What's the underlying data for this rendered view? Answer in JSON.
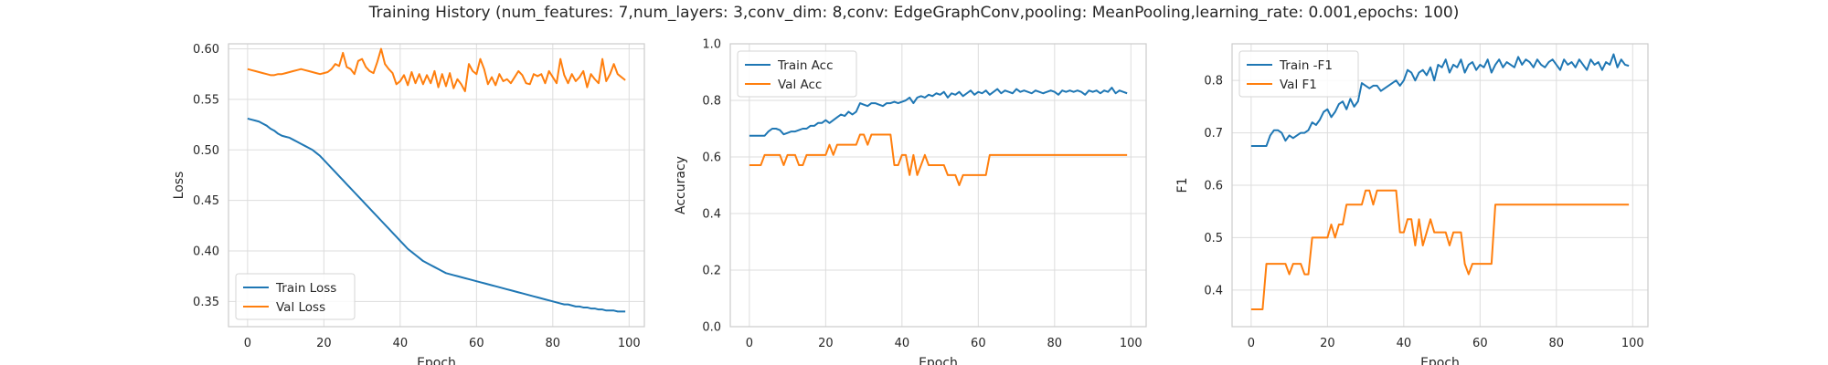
{
  "title": "Training History (num_features: 7,num_layers: 3,conv_dim: 8,conv: EdgeGraphConv,pooling: MeanPooling,learning_rate: 0.001,epochs: 100)",
  "colors": {
    "train": "#1f77b4",
    "val": "#ff7f0e",
    "grid": "#dddddd",
    "axes": "#cccccc"
  },
  "chart_data": [
    {
      "type": "line",
      "title": "",
      "xlabel": "Epoch",
      "ylabel": "Loss",
      "xlim": [
        -5,
        104
      ],
      "ylim": [
        0.325,
        0.605
      ],
      "xticks": [
        0,
        20,
        40,
        60,
        80,
        100
      ],
      "yticks": [
        0.35,
        0.4,
        0.45,
        0.5,
        0.55,
        0.6
      ],
      "ytick_decimals": 2,
      "legend": "lower-left",
      "grid": true,
      "series": [
        {
          "name": "Train Loss",
          "color": "#1f77b4",
          "y": [
            0.531,
            0.53,
            0.529,
            0.528,
            0.526,
            0.524,
            0.521,
            0.519,
            0.516,
            0.514,
            0.513,
            0.512,
            0.51,
            0.508,
            0.506,
            0.504,
            0.502,
            0.5,
            0.497,
            0.494,
            0.49,
            0.486,
            0.482,
            0.478,
            0.474,
            0.47,
            0.466,
            0.462,
            0.458,
            0.454,
            0.45,
            0.446,
            0.442,
            0.438,
            0.434,
            0.43,
            0.426,
            0.422,
            0.418,
            0.414,
            0.41,
            0.406,
            0.402,
            0.399,
            0.396,
            0.393,
            0.39,
            0.388,
            0.386,
            0.384,
            0.382,
            0.38,
            0.378,
            0.377,
            0.376,
            0.375,
            0.374,
            0.373,
            0.372,
            0.371,
            0.37,
            0.369,
            0.368,
            0.367,
            0.366,
            0.365,
            0.364,
            0.363,
            0.362,
            0.361,
            0.36,
            0.359,
            0.358,
            0.357,
            0.356,
            0.355,
            0.354,
            0.353,
            0.352,
            0.351,
            0.35,
            0.349,
            0.348,
            0.347,
            0.347,
            0.346,
            0.345,
            0.345,
            0.344,
            0.344,
            0.343,
            0.343,
            0.342,
            0.342,
            0.341,
            0.341,
            0.341,
            0.34,
            0.34,
            0.34
          ]
        },
        {
          "name": "Val Loss",
          "color": "#ff7f0e",
          "y": [
            0.58,
            0.579,
            0.578,
            0.577,
            0.576,
            0.575,
            0.574,
            0.574,
            0.575,
            0.575,
            0.576,
            0.577,
            0.578,
            0.579,
            0.58,
            0.579,
            0.578,
            0.577,
            0.576,
            0.575,
            0.576,
            0.577,
            0.58,
            0.585,
            0.583,
            0.596,
            0.582,
            0.58,
            0.575,
            0.588,
            0.59,
            0.582,
            0.578,
            0.576,
            0.587,
            0.6,
            0.585,
            0.58,
            0.576,
            0.565,
            0.568,
            0.574,
            0.564,
            0.577,
            0.566,
            0.575,
            0.565,
            0.574,
            0.566,
            0.578,
            0.562,
            0.575,
            0.563,
            0.576,
            0.561,
            0.57,
            0.565,
            0.558,
            0.585,
            0.578,
            0.575,
            0.59,
            0.58,
            0.565,
            0.572,
            0.564,
            0.575,
            0.568,
            0.57,
            0.566,
            0.572,
            0.578,
            0.574,
            0.566,
            0.565,
            0.575,
            0.573,
            0.575,
            0.566,
            0.578,
            0.572,
            0.566,
            0.59,
            0.574,
            0.566,
            0.575,
            0.568,
            0.572,
            0.578,
            0.562,
            0.575,
            0.57,
            0.566,
            0.59,
            0.568,
            0.575,
            0.585,
            0.575,
            0.572,
            0.569
          ]
        }
      ]
    },
    {
      "type": "line",
      "title": "",
      "xlabel": "Epoch",
      "ylabel": "Accuracy",
      "xlim": [
        -5,
        104
      ],
      "ylim": [
        0.0,
        1.0
      ],
      "xticks": [
        0,
        20,
        40,
        60,
        80,
        100
      ],
      "yticks": [
        0.0,
        0.2,
        0.4,
        0.6,
        0.8,
        1.0
      ],
      "ytick_decimals": 1,
      "legend": "upper-left",
      "grid": true,
      "series": [
        {
          "name": "Train Acc",
          "color": "#1f77b4",
          "y": [
            0.675,
            0.675,
            0.675,
            0.675,
            0.675,
            0.69,
            0.7,
            0.7,
            0.695,
            0.68,
            0.685,
            0.69,
            0.69,
            0.695,
            0.7,
            0.7,
            0.71,
            0.71,
            0.72,
            0.72,
            0.73,
            0.72,
            0.73,
            0.74,
            0.75,
            0.745,
            0.76,
            0.75,
            0.76,
            0.79,
            0.785,
            0.78,
            0.79,
            0.79,
            0.785,
            0.78,
            0.79,
            0.79,
            0.795,
            0.79,
            0.795,
            0.8,
            0.81,
            0.79,
            0.81,
            0.815,
            0.81,
            0.82,
            0.815,
            0.825,
            0.82,
            0.83,
            0.81,
            0.825,
            0.82,
            0.83,
            0.815,
            0.825,
            0.835,
            0.82,
            0.83,
            0.825,
            0.835,
            0.82,
            0.83,
            0.84,
            0.825,
            0.835,
            0.83,
            0.825,
            0.84,
            0.83,
            0.835,
            0.83,
            0.825,
            0.835,
            0.83,
            0.825,
            0.83,
            0.835,
            0.83,
            0.82,
            0.835,
            0.83,
            0.835,
            0.83,
            0.835,
            0.83,
            0.82,
            0.835,
            0.83,
            0.835,
            0.825,
            0.835,
            0.83,
            0.845,
            0.825,
            0.835,
            0.83,
            0.825
          ]
        },
        {
          "name": "Val Acc",
          "color": "#ff7f0e",
          "y": [
            0.571,
            0.571,
            0.571,
            0.571,
            0.607,
            0.607,
            0.607,
            0.607,
            0.607,
            0.571,
            0.607,
            0.607,
            0.607,
            0.571,
            0.571,
            0.607,
            0.607,
            0.607,
            0.607,
            0.607,
            0.607,
            0.643,
            0.607,
            0.643,
            0.643,
            0.643,
            0.643,
            0.643,
            0.643,
            0.679,
            0.679,
            0.643,
            0.679,
            0.679,
            0.679,
            0.679,
            0.679,
            0.679,
            0.571,
            0.571,
            0.607,
            0.607,
            0.536,
            0.607,
            0.536,
            0.571,
            0.607,
            0.571,
            0.571,
            0.571,
            0.571,
            0.571,
            0.536,
            0.536,
            0.536,
            0.5,
            0.536,
            0.536,
            0.536,
            0.536,
            0.536,
            0.536,
            0.536,
            0.607,
            0.607,
            0.607,
            0.607,
            0.607,
            0.607,
            0.607,
            0.607,
            0.607,
            0.607,
            0.607,
            0.607,
            0.607,
            0.607,
            0.607,
            0.607,
            0.607,
            0.607,
            0.607,
            0.607,
            0.607,
            0.607,
            0.607,
            0.607,
            0.607,
            0.607,
            0.607,
            0.607,
            0.607,
            0.607,
            0.607,
            0.607,
            0.607,
            0.607,
            0.607,
            0.607,
            0.607
          ]
        }
      ]
    },
    {
      "type": "line",
      "title": "",
      "xlabel": "Epoch",
      "ylabel": "F1",
      "xlim": [
        -5,
        104
      ],
      "ylim": [
        0.33,
        0.87
      ],
      "xticks": [
        0,
        20,
        40,
        60,
        80,
        100
      ],
      "yticks": [
        0.4,
        0.5,
        0.6,
        0.7,
        0.8
      ],
      "ytick_decimals": 1,
      "legend": "upper-left",
      "grid": true,
      "series": [
        {
          "name": "Train -F1",
          "color": "#1f77b4",
          "y": [
            0.675,
            0.675,
            0.675,
            0.675,
            0.675,
            0.695,
            0.705,
            0.705,
            0.7,
            0.685,
            0.695,
            0.69,
            0.695,
            0.7,
            0.7,
            0.705,
            0.72,
            0.715,
            0.725,
            0.74,
            0.745,
            0.73,
            0.74,
            0.755,
            0.76,
            0.745,
            0.765,
            0.75,
            0.76,
            0.795,
            0.79,
            0.785,
            0.79,
            0.79,
            0.78,
            0.785,
            0.79,
            0.795,
            0.8,
            0.79,
            0.8,
            0.82,
            0.815,
            0.8,
            0.815,
            0.82,
            0.81,
            0.825,
            0.8,
            0.83,
            0.825,
            0.84,
            0.815,
            0.83,
            0.825,
            0.84,
            0.815,
            0.83,
            0.835,
            0.82,
            0.83,
            0.825,
            0.84,
            0.815,
            0.83,
            0.84,
            0.825,
            0.835,
            0.83,
            0.825,
            0.845,
            0.83,
            0.84,
            0.835,
            0.825,
            0.84,
            0.83,
            0.825,
            0.835,
            0.84,
            0.83,
            0.82,
            0.84,
            0.83,
            0.835,
            0.825,
            0.84,
            0.83,
            0.82,
            0.84,
            0.83,
            0.835,
            0.82,
            0.835,
            0.83,
            0.85,
            0.825,
            0.84,
            0.83,
            0.828
          ]
        },
        {
          "name": "Val F1",
          "color": "#ff7f0e",
          "y": [
            0.363,
            0.363,
            0.363,
            0.363,
            0.45,
            0.45,
            0.45,
            0.45,
            0.45,
            0.45,
            0.43,
            0.45,
            0.45,
            0.45,
            0.43,
            0.43,
            0.5,
            0.5,
            0.5,
            0.5,
            0.5,
            0.525,
            0.5,
            0.525,
            0.525,
            0.563,
            0.563,
            0.563,
            0.563,
            0.563,
            0.59,
            0.59,
            0.563,
            0.59,
            0.59,
            0.59,
            0.59,
            0.59,
            0.59,
            0.51,
            0.51,
            0.535,
            0.535,
            0.485,
            0.535,
            0.485,
            0.51,
            0.535,
            0.51,
            0.51,
            0.51,
            0.51,
            0.485,
            0.51,
            0.51,
            0.51,
            0.45,
            0.43,
            0.45,
            0.45,
            0.45,
            0.45,
            0.45,
            0.45,
            0.563,
            0.563,
            0.563,
            0.563,
            0.563,
            0.563,
            0.563,
            0.563,
            0.563,
            0.563,
            0.563,
            0.563,
            0.563,
            0.563,
            0.563,
            0.563,
            0.563,
            0.563,
            0.563,
            0.563,
            0.563,
            0.563,
            0.563,
            0.563,
            0.563,
            0.563,
            0.563,
            0.563,
            0.563,
            0.563,
            0.563,
            0.563,
            0.563,
            0.563,
            0.563,
            0.563
          ]
        }
      ]
    }
  ]
}
